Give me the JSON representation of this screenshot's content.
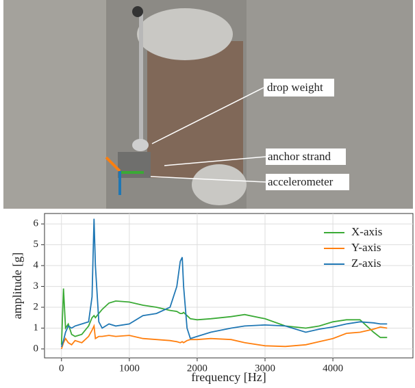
{
  "photo": {
    "labels": [
      "drop weight",
      "anchor strand",
      "accelerometer"
    ]
  },
  "chart_data": {
    "type": "line",
    "xlabel": "frequency [Hz]",
    "ylabel": "amplitude [g]",
    "x": [
      0,
      30,
      60,
      100,
      150,
      200,
      300,
      400,
      450,
      480,
      500,
      550,
      600,
      700,
      800,
      1000,
      1200,
      1400,
      1600,
      1700,
      1750,
      1780,
      1800,
      1850,
      1900,
      2000,
      2200,
      2500,
      2700,
      3000,
      3300,
      3600,
      3800,
      4000,
      4200,
      4400,
      4600,
      4700,
      4800
    ],
    "series": [
      {
        "name": "X-axis",
        "color": "#3aaa35",
        "values": [
          0.2,
          2.9,
          1.0,
          1.2,
          0.7,
          0.6,
          0.7,
          1.1,
          1.5,
          1.6,
          1.5,
          1.7,
          1.9,
          2.2,
          2.3,
          2.25,
          2.1,
          2.0,
          1.85,
          1.8,
          1.7,
          1.7,
          1.75,
          1.6,
          1.45,
          1.4,
          1.45,
          1.55,
          1.65,
          1.45,
          1.1,
          1.0,
          1.1,
          1.3,
          1.4,
          1.4,
          0.8,
          0.55,
          0.55
        ]
      },
      {
        "name": "Y-axis",
        "color": "#ff7f0e",
        "values": [
          0,
          0.3,
          0.5,
          0.3,
          0.2,
          0.4,
          0.3,
          0.6,
          0.9,
          1.1,
          0.5,
          0.6,
          0.6,
          0.65,
          0.6,
          0.65,
          0.5,
          0.45,
          0.4,
          0.35,
          0.3,
          0.35,
          0.3,
          0.4,
          0.45,
          0.45,
          0.5,
          0.45,
          0.3,
          0.15,
          0.12,
          0.2,
          0.35,
          0.5,
          0.75,
          0.8,
          0.95,
          1.05,
          1.0
        ]
      },
      {
        "name": "Z-axis",
        "color": "#1f77b4",
        "values": [
          0.1,
          0.4,
          0.8,
          1.1,
          1.0,
          1.1,
          1.2,
          1.3,
          2.5,
          6.25,
          4.0,
          1.3,
          1.0,
          1.2,
          1.1,
          1.2,
          1.6,
          1.7,
          2.0,
          3.0,
          4.2,
          4.4,
          3.0,
          1.0,
          0.5,
          0.6,
          0.8,
          1.0,
          1.1,
          1.15,
          1.1,
          0.8,
          0.95,
          1.05,
          1.2,
          1.3,
          1.25,
          1.2,
          1.2
        ]
      }
    ],
    "xlim": [
      -250,
      5180
    ],
    "ylim": [
      -0.43,
      6.5
    ],
    "xticks": [
      0,
      1000,
      2000,
      3000,
      4000
    ],
    "yticks": [
      0,
      1,
      2,
      3,
      4,
      5,
      6
    ],
    "grid": true,
    "legend": "upper-right"
  }
}
